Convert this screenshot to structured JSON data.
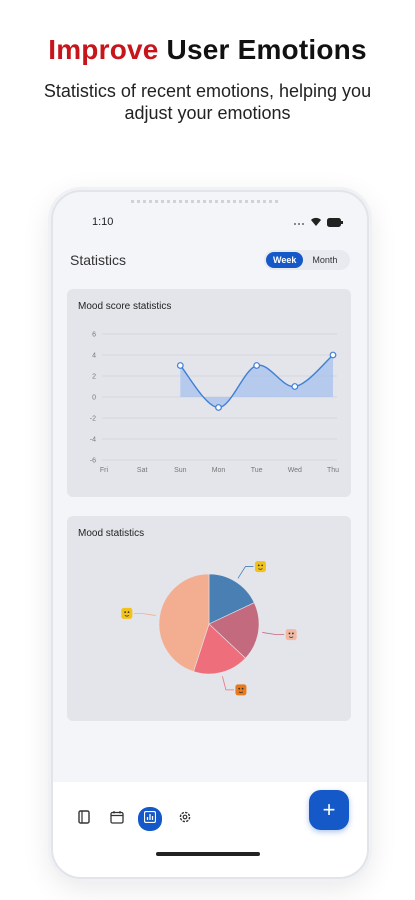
{
  "headline": {
    "accent": "Improve",
    "rest": "User Emotions"
  },
  "subtitle": "Statistics of recent emotions, helping you adjust your emotions",
  "status": {
    "time": "1:10"
  },
  "screen": {
    "title": "Statistics",
    "toggle": {
      "week": "Week",
      "month": "Month",
      "selected": "Week"
    }
  },
  "mood_score_card": {
    "title": "Mood score statistics"
  },
  "mood_stats_card": {
    "title": "Mood statistics"
  },
  "colors": {
    "accent": "#1558c7",
    "headline_red": "#c8151b",
    "line": "#3f7fd6",
    "area": "#a9c3ec"
  },
  "icons": {
    "nav": [
      "diary-icon",
      "calendar-icon",
      "statistics-icon",
      "settings-icon"
    ],
    "fab": "plus-icon"
  },
  "chart_data": [
    {
      "type": "line",
      "title": "Mood score statistics",
      "categories": [
        "Fri",
        "Sat",
        "Sun",
        "Mon",
        "Tue",
        "Wed",
        "Thu"
      ],
      "y_ticks": [
        "6",
        "4",
        "2",
        "0",
        "-2",
        "-4",
        "-6"
      ],
      "ylim": [
        -6,
        6
      ],
      "values": [
        null,
        null,
        3,
        -1,
        3,
        1,
        4
      ],
      "area_fill": true,
      "grid": "horizontal"
    },
    {
      "type": "pie",
      "title": "Mood statistics",
      "slices": [
        {
          "icon": "happy-face-icon",
          "color": "#4a7fb4",
          "value": 18
        },
        {
          "icon": "calm-face-icon",
          "color": "#c46a7e",
          "value": 19
        },
        {
          "icon": "sad-face-icon",
          "color": "#ee6f7b",
          "value": 18
        },
        {
          "icon": "neutral-face-icon",
          "color": "#f3ae91",
          "value": 45
        }
      ]
    }
  ]
}
